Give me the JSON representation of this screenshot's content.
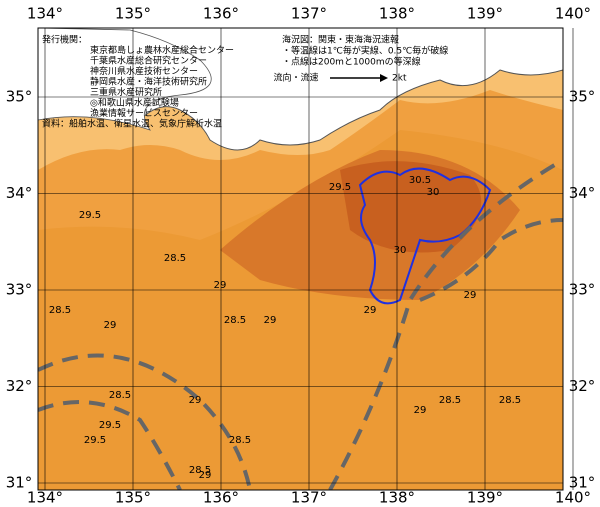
{
  "map": {
    "lon_ticks": [
      {
        "value": 134,
        "label": "134°"
      },
      {
        "value": 135,
        "label": "135°"
      },
      {
        "value": 136,
        "label": "136°"
      },
      {
        "value": 137,
        "label": "137°"
      },
      {
        "value": 138,
        "label": "138°"
      },
      {
        "value": 139,
        "label": "139°"
      },
      {
        "value": 140,
        "label": "140°"
      }
    ],
    "lat_ticks": [
      {
        "value": 35,
        "label": "35°"
      },
      {
        "value": 34,
        "label": "34°"
      },
      {
        "value": 33,
        "label": "33°"
      },
      {
        "value": 32,
        "label": "32°"
      },
      {
        "value": 31,
        "label": "31°"
      }
    ],
    "publisher_lines": [
      "発行機関：",
      "東京都島しょ農林水産総合センター",
      "千葉県水産総合研究センター",
      "神奈川県水産技術センター",
      "静岡県水産・海洋技術研究所",
      "三重県水産研究所",
      "◎和歌山県水産試験場",
      "漁業情報サービスセンター",
      "資料：船舶水温、衛星水温、気象庁解析水温"
    ],
    "notes": [
      "海況図：関東・東海海況速報",
      "・等温線は1℃毎が実線、0.5℃毎が破線",
      "・点線は200mと1000mの等深線"
    ],
    "current_legend": {
      "label": "流向・流速",
      "speed": "2kt"
    },
    "contour_labels": [
      "29.5",
      "29.5",
      "30",
      "30.5",
      "30",
      "29",
      "28.5",
      "28.5",
      "29",
      "29",
      "28.5",
      "29",
      "29.5",
      "29.5",
      "29",
      "28.5",
      "29",
      "28.5",
      "28.5",
      "29",
      "28.5",
      "29",
      "28.5"
    ]
  }
}
